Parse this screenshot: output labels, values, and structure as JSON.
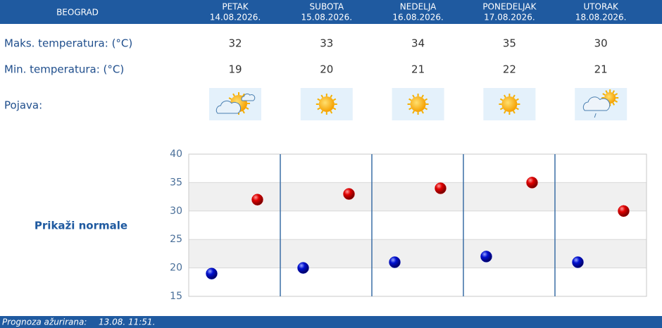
{
  "header": {
    "city": "BEOGRAD",
    "days": [
      {
        "name": "PETAK",
        "date": "14.08.2026."
      },
      {
        "name": "SUBOTA",
        "date": "15.08.2026."
      },
      {
        "name": "NEDELJA",
        "date": "16.08.2026."
      },
      {
        "name": "PONEDELJAK",
        "date": "17.08.2026."
      },
      {
        "name": "UTORAK",
        "date": "18.08.2026."
      }
    ]
  },
  "rows": {
    "max_label": "Maks. temperatura: (°C)",
    "min_label": "Min. temperatura: (°C)",
    "phenomenon_label": "Pojava:"
  },
  "link": "Prikaži normale",
  "footer": {
    "label": "Prognoza ažurirana:",
    "time": "13.08. 11:51."
  },
  "chart_data": {
    "type": "scatter",
    "series": [
      {
        "color": "#d40000",
        "values": [
          32,
          33,
          34,
          35,
          30
        ]
      },
      {
        "color": "#0010c0",
        "values": [
          19,
          20,
          21,
          22,
          21
        ]
      }
    ],
    "ylim": [
      15,
      40
    ],
    "yticks": [
      15,
      20,
      25,
      30,
      35,
      40
    ],
    "grid": true
  }
}
